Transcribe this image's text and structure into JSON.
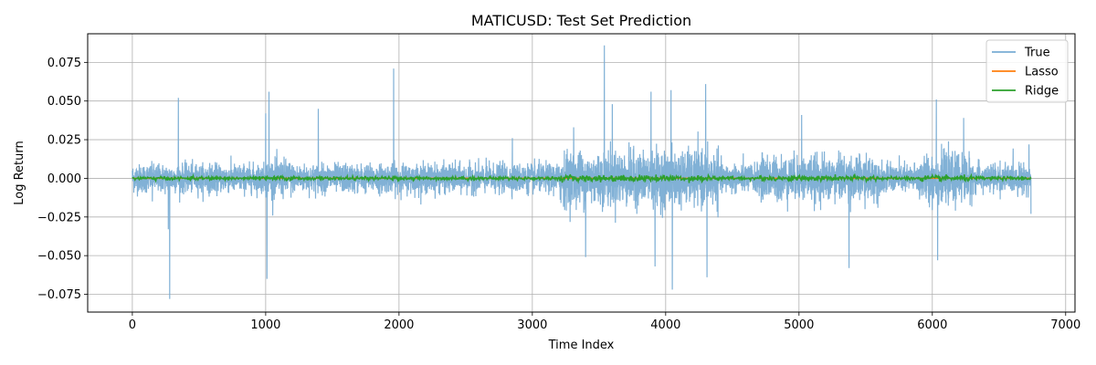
{
  "chart_data": {
    "type": "line",
    "title": "MATICUSD: Test Set Prediction",
    "xlabel": "Time Index",
    "ylabel": "Log Return",
    "xlim": [
      -335,
      7070
    ],
    "ylim": [
      -0.0865,
      0.0935
    ],
    "xticks": [
      0,
      1000,
      2000,
      3000,
      4000,
      5000,
      6000,
      7000
    ],
    "xtick_labels": [
      "0",
      "1000",
      "2000",
      "3000",
      "4000",
      "5000",
      "6000",
      "7000"
    ],
    "yticks": [
      -0.075,
      -0.05,
      -0.025,
      0.0,
      0.025,
      0.05,
      0.075
    ],
    "ytick_labels": [
      "−0.075",
      "−0.050",
      "−0.025",
      "0.000",
      "0.025",
      "0.050",
      "0.075"
    ],
    "grid": true,
    "legend_position": "top-right",
    "x_count": 6740,
    "series": [
      {
        "name": "True",
        "color": "#7aadd4",
        "x": [
          0,
          150,
          270,
          280,
          345,
          1000,
          1010,
          1025,
          1395,
          1960,
          2850,
          3310,
          3400,
          3540,
          3600,
          3890,
          3920,
          4040,
          4050,
          4300,
          4310,
          5020,
          5375,
          6030,
          6040,
          6235,
          6725,
          6740
        ],
        "y": [
          0.005,
          -0.015,
          -0.033,
          -0.078,
          0.052,
          0.042,
          -0.065,
          0.056,
          0.045,
          0.071,
          0.026,
          0.033,
          -0.051,
          0.086,
          0.048,
          0.056,
          -0.057,
          0.057,
          -0.072,
          0.061,
          -0.064,
          0.041,
          -0.058,
          0.051,
          -0.053,
          0.039,
          0.022,
          -0.023
        ]
      },
      {
        "name": "Lasso",
        "color": "#ff7f0e",
        "x": [
          0,
          6740
        ],
        "y": [
          0.0,
          0.0
        ]
      },
      {
        "name": "Ridge",
        "color": "#2ca02c",
        "x": [
          0,
          6740
        ],
        "y": [
          0.0,
          0.0
        ]
      }
    ]
  }
}
